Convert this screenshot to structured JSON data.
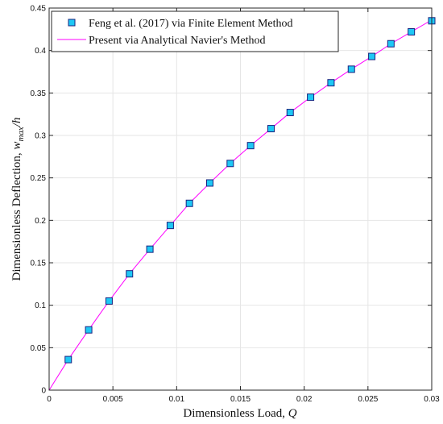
{
  "chart_data": {
    "type": "line",
    "title": "",
    "xlabel": "Dimensionless Load, ",
    "xlabel_var": "Q",
    "ylabel": "Dimensionless Deflection, ",
    "ylabel_var": "w",
    "ylabel_sub": "max",
    "ylabel_tail": "/h",
    "xlim": [
      0,
      0.03
    ],
    "ylim": [
      0,
      0.45
    ],
    "xticks": [
      0,
      0.005,
      0.01,
      0.015,
      0.02,
      0.025,
      0.03
    ],
    "xtick_labels": [
      "0",
      "0.005",
      "0.01",
      "0.015",
      "0.02",
      "0.025",
      "0.03"
    ],
    "yticks": [
      0,
      0.05,
      0.1,
      0.15,
      0.2,
      0.25,
      0.3,
      0.35,
      0.4,
      0.45
    ],
    "ytick_labels": [
      "0",
      "0.05",
      "0.1",
      "0.15",
      "0.2",
      "0.25",
      "0.3",
      "0.35",
      "0.4",
      "0.45"
    ],
    "grid": true,
    "legend_position": "top-left",
    "series": [
      {
        "name": "Feng et al. (2017) via Finite Element Method",
        "kind": "markers",
        "marker": "square",
        "color": "#1ec8f5",
        "x": [
          0.0015,
          0.0031,
          0.0047,
          0.0063,
          0.0079,
          0.0095,
          0.011,
          0.0126,
          0.0142,
          0.0158,
          0.0174,
          0.0189,
          0.0205,
          0.0221,
          0.0237,
          0.0253,
          0.0268,
          0.0284,
          0.03
        ],
        "y": [
          0.036,
          0.071,
          0.105,
          0.137,
          0.166,
          0.194,
          0.22,
          0.244,
          0.267,
          0.288,
          0.308,
          0.327,
          0.345,
          0.362,
          0.378,
          0.393,
          0.408,
          0.422,
          0.435
        ]
      },
      {
        "name": "Present via Analytical Navier's Method",
        "kind": "line",
        "color": "#ff00ff",
        "x": [
          0,
          0.0015,
          0.0031,
          0.0047,
          0.0063,
          0.0079,
          0.0095,
          0.011,
          0.0126,
          0.0142,
          0.0158,
          0.0174,
          0.0189,
          0.0205,
          0.0221,
          0.0237,
          0.0253,
          0.0268,
          0.0284,
          0.03
        ],
        "y": [
          0,
          0.036,
          0.071,
          0.105,
          0.137,
          0.166,
          0.194,
          0.22,
          0.244,
          0.267,
          0.288,
          0.308,
          0.327,
          0.345,
          0.362,
          0.378,
          0.393,
          0.408,
          0.422,
          0.436
        ]
      }
    ]
  }
}
